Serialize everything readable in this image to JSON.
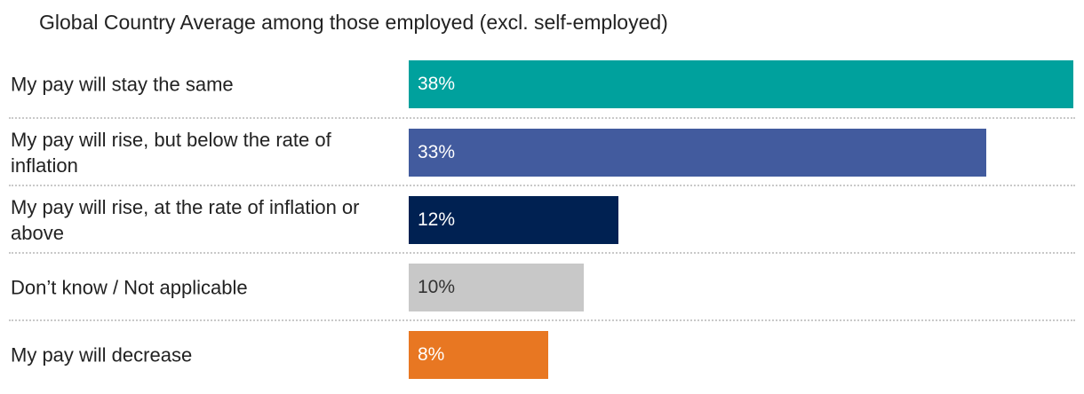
{
  "chart_data": {
    "type": "bar",
    "orientation": "horizontal",
    "title": "Global Country Average among those employed (excl. self-employed)",
    "categories": [
      "My pay will stay the same",
      "My pay will rise, but below the rate of inflation",
      "My pay will rise, at the rate of inflation or above",
      "Don’t know / Not applicable",
      "My pay will decrease"
    ],
    "values": [
      38,
      33,
      12,
      10,
      8
    ],
    "value_labels": [
      "38%",
      "33%",
      "12%",
      "10%",
      "8%"
    ],
    "colors": [
      "#00a19d",
      "#425b9e",
      "#002152",
      "#c8c8c8",
      "#e87722"
    ],
    "xlim": [
      0,
      38
    ],
    "grid": false,
    "legend": "none"
  }
}
